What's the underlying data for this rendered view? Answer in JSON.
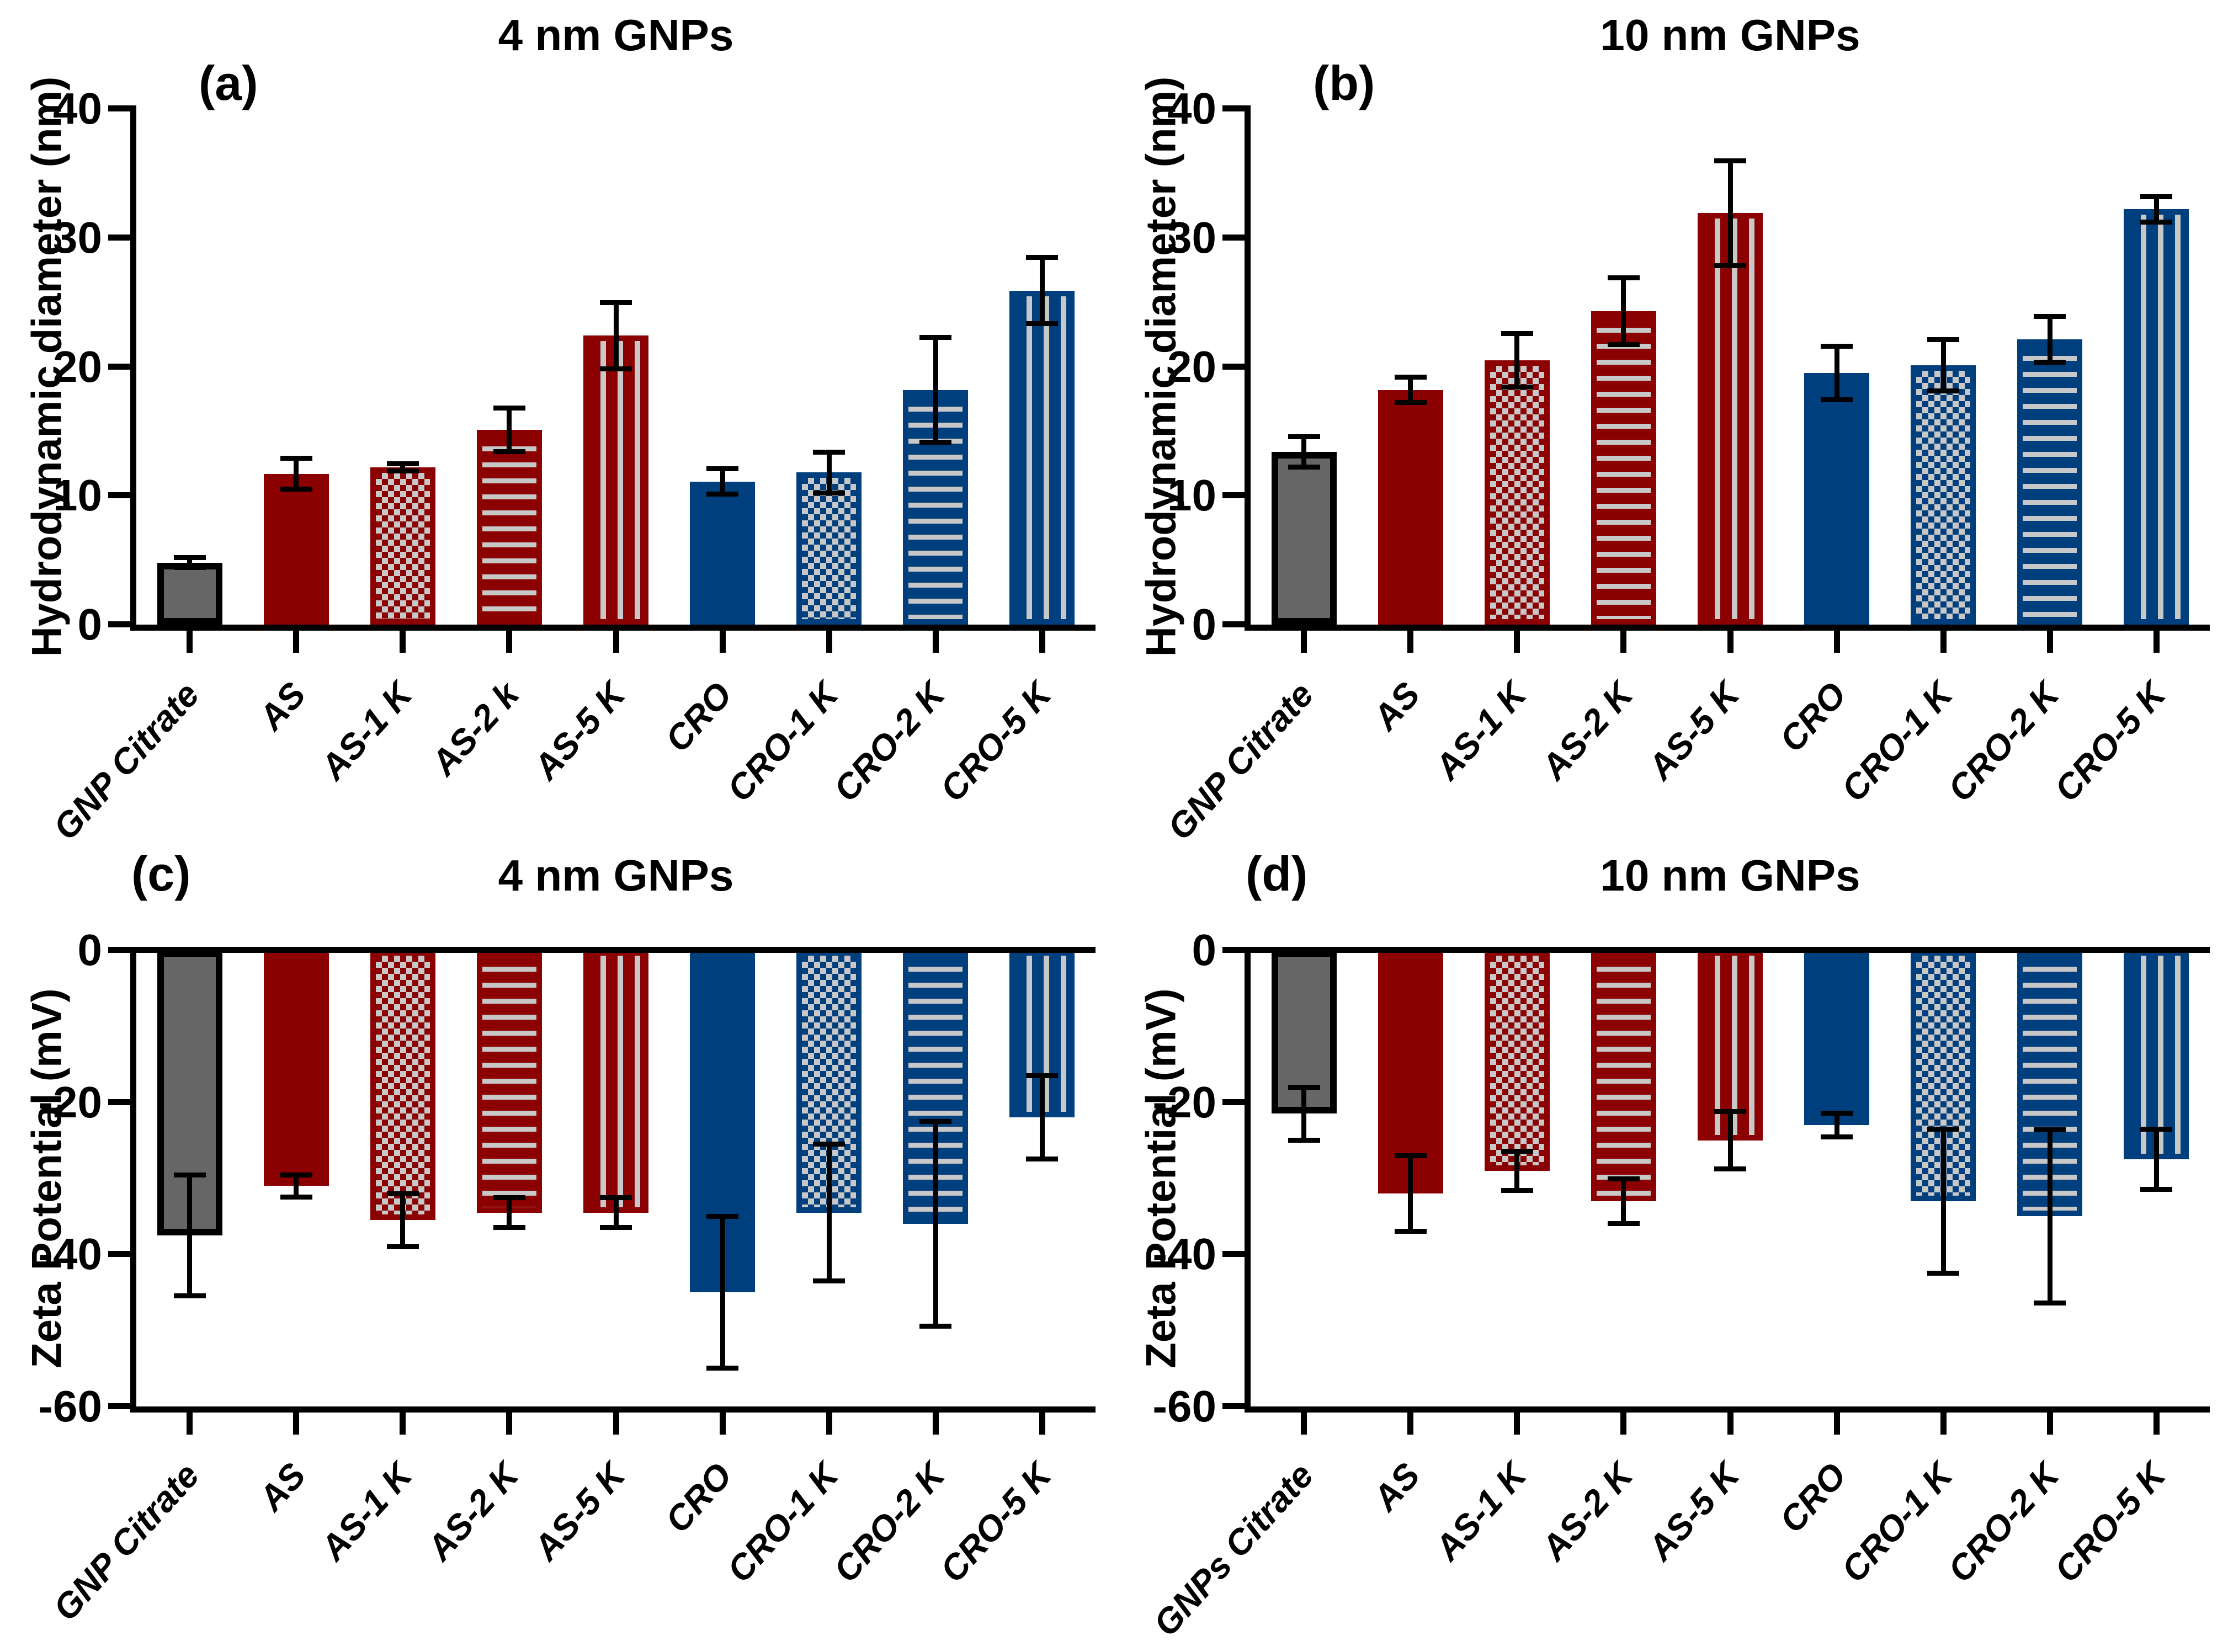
{
  "figure_name": "GNP characterization bar charts",
  "styles": {
    "background": "#ffffff",
    "axis_color": "#000000",
    "error_bar_color": "#000000",
    "pattern_light": "#C8C8C8",
    "bar_colors": [
      "#666666",
      "#8B0000",
      "#8B0000",
      "#8B0000",
      "#8B0000",
      "#003F7D",
      "#003F7D",
      "#003F7D",
      "#003F7D"
    ],
    "bar_patterns": [
      "solid",
      "solid",
      "checker",
      "hlines",
      "vlines",
      "solid",
      "checker",
      "hlines",
      "vlines"
    ],
    "bar_borders": [
      "#000000",
      "#8B0000",
      "#8B0000",
      "#8B0000",
      "#8B0000",
      "#003F7D",
      "#003F7D",
      "#003F7D",
      "#003F7D"
    ]
  },
  "chart_data": [
    {
      "type": "bar",
      "panel_label": "(a)",
      "title": "4 nm GNPs",
      "ylabel": "Hydrodynamic diameter (nm)",
      "xlabel": "",
      "ylim": [
        0,
        40
      ],
      "yticks": [
        0,
        10,
        20,
        30,
        40
      ],
      "grid": false,
      "legend": "none",
      "categories": [
        "GNP Citrate",
        "AS",
        "AS-1 K",
        "AS-2 k",
        "AS-5 K",
        "CRO",
        "CRO-1 K",
        "CRO-2 K",
        "CRO-5 K"
      ],
      "values": [
        4.8,
        11.7,
        12.2,
        15.1,
        22.4,
        11.1,
        11.8,
        18.2,
        25.9
      ],
      "errors": [
        0.4,
        1.2,
        0.3,
        1.7,
        2.6,
        1.0,
        1.6,
        4.1,
        2.6
      ]
    },
    {
      "type": "bar",
      "panel_label": "(b)",
      "title": "10 nm GNPs",
      "ylabel": "Hydrodynamic diameter (nm)",
      "xlabel": "",
      "ylim": [
        0,
        40
      ],
      "yticks": [
        0,
        10,
        20,
        30,
        40
      ],
      "grid": false,
      "legend": "none",
      "categories": [
        "GNP Citrate",
        "AS",
        "AS-1 K",
        "AS-2 K",
        "AS-5 K",
        "CRO",
        "CRO-1 K",
        "CRO-2 K",
        "CRO-5 K"
      ],
      "values": [
        13.4,
        18.2,
        20.5,
        24.3,
        31.9,
        19.5,
        20.1,
        22.1,
        32.2
      ],
      "errors": [
        1.2,
        1.0,
        2.1,
        2.6,
        4.1,
        2.1,
        2.0,
        1.8,
        1.0
      ]
    },
    {
      "type": "bar",
      "panel_label": "(c)",
      "title": "4 nm GNPs",
      "ylabel": "Zeta Potential (mV)",
      "xlabel": "",
      "ylim": [
        0,
        -60
      ],
      "yticks": [
        0,
        -20,
        -40,
        -60
      ],
      "grid": false,
      "legend": "none",
      "categories": [
        "GNP Citrate",
        "AS",
        "AS-1 K",
        "AS-2 K",
        "AS-5 K",
        "CRO",
        "CRO-1 K",
        "CRO-2 K",
        "CRO-5 K"
      ],
      "values": [
        -37.5,
        -31.0,
        -35.5,
        -34.5,
        -34.5,
        -45.0,
        -34.5,
        -36.0,
        -22.0
      ],
      "errors": [
        8.0,
        1.5,
        3.5,
        2.0,
        2.0,
        10.0,
        9.0,
        13.5,
        5.5
      ]
    },
    {
      "type": "bar",
      "panel_label": "(d)",
      "title": "10 nm GNPs",
      "ylabel": "Zeta Potential (mV)",
      "xlabel": "",
      "ylim": [
        0,
        -60
      ],
      "yticks": [
        0,
        -20,
        -40,
        -60
      ],
      "grid": false,
      "legend": "none",
      "categories": [
        "GNPs Citrate",
        "AS",
        "AS-1 K",
        "AS-2 K",
        "AS-5 K",
        "CRO",
        "CRO-1 K",
        "CRO-2 K",
        "CRO-5 K"
      ],
      "values": [
        -21.5,
        -32.0,
        -29.0,
        -33.0,
        -25.0,
        -23.0,
        -33.0,
        -35.0,
        -27.5
      ],
      "errors": [
        3.5,
        5.0,
        2.6,
        3.0,
        3.8,
        1.6,
        9.5,
        11.4,
        4.0
      ]
    }
  ]
}
